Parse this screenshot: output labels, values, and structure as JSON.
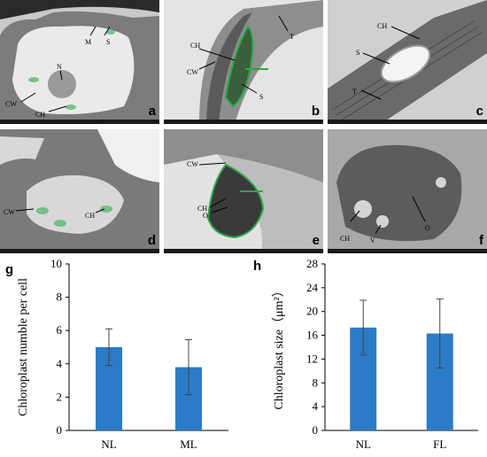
{
  "figure": {
    "micrographs": [
      {
        "label": "a",
        "annotations": [
          "M",
          "S",
          "N",
          "CW",
          "CH"
        ]
      },
      {
        "label": "b",
        "annotations": [
          "T",
          "CH",
          "CW",
          "S"
        ]
      },
      {
        "label": "c",
        "annotations": [
          "CH",
          "S",
          "T"
        ]
      },
      {
        "label": "d",
        "annotations": [
          "CW",
          "CH"
        ]
      },
      {
        "label": "e",
        "annotations": [
          "CW",
          "CH",
          "O"
        ]
      },
      {
        "label": "f",
        "annotations": [
          "CH",
          "V",
          "O"
        ]
      }
    ],
    "colors": {
      "bar": "#2b7bc7",
      "chloroplast_highlight": "#2aa84a"
    }
  },
  "chart_data": [
    {
      "panel_label": "g",
      "type": "bar",
      "categories": [
        "NL",
        "ML"
      ],
      "values": [
        5.0,
        3.8
      ],
      "error": [
        1.1,
        1.65
      ],
      "ylabel": "Chloroplast numble per cell",
      "ylim": [
        0,
        10
      ],
      "yticks": [
        "0",
        "2",
        "4",
        "6",
        "8",
        "10"
      ],
      "grid": false
    },
    {
      "panel_label": "h",
      "type": "bar",
      "categories": [
        "NL",
        "FL"
      ],
      "values": [
        17.3,
        16.3
      ],
      "error": [
        4.6,
        5.8
      ],
      "ylabel": "Chloroplast size（μm²）",
      "ylim": [
        0,
        28
      ],
      "yticks": [
        "0",
        "4",
        "8",
        "12",
        "16",
        "20",
        "24",
        "28"
      ],
      "grid": false
    }
  ]
}
